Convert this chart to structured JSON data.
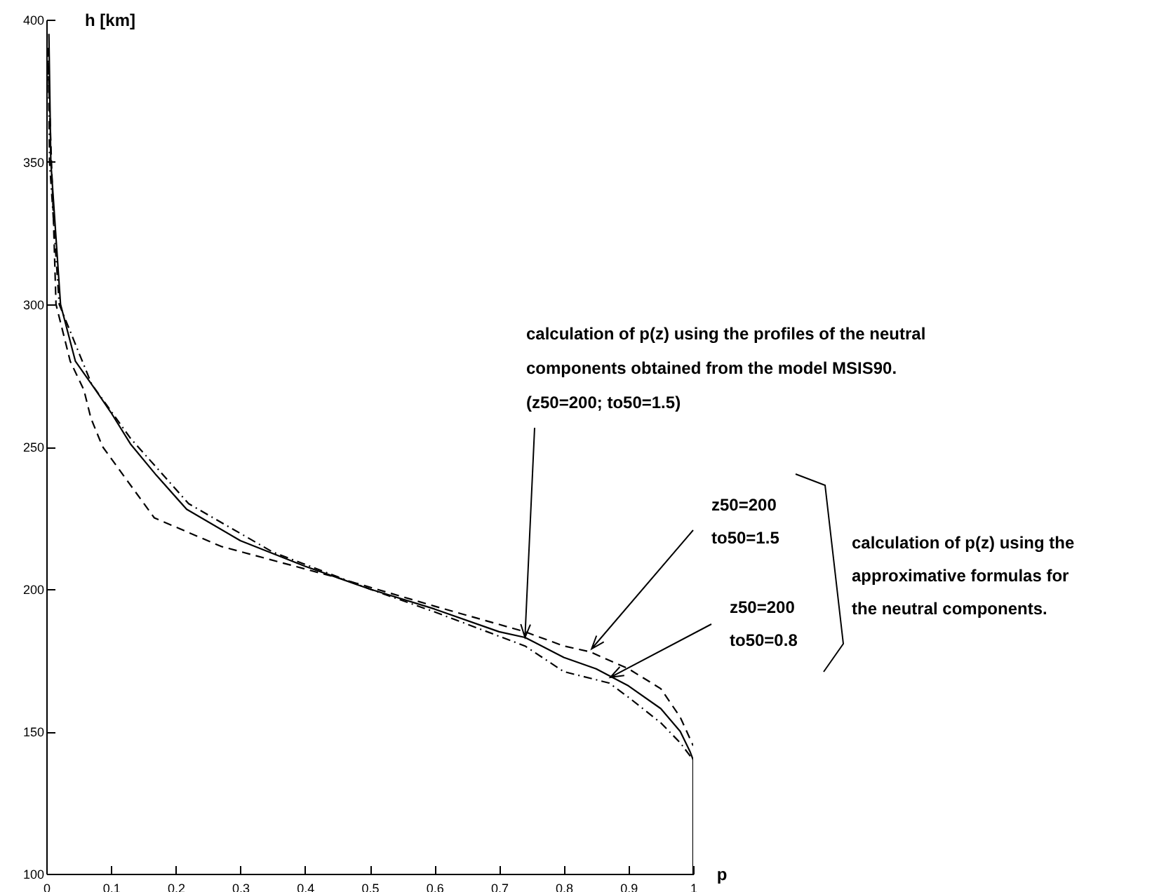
{
  "chart_data": {
    "type": "line",
    "xlabel": "p",
    "ylabel": "h [km]",
    "xlim": [
      0,
      1
    ],
    "ylim": [
      100,
      400
    ],
    "xticks": [
      0,
      0.1,
      0.2,
      0.3,
      0.4,
      0.5,
      0.6,
      0.7,
      0.8,
      0.9,
      1
    ],
    "yticks": [
      100,
      150,
      200,
      250,
      300,
      350,
      400
    ],
    "grid": false,
    "series": [
      {
        "color": "#000000",
        "line_style": "solid",
        "x": [
          0.004,
          0.007,
          0.022,
          0.045,
          0.076,
          0.1,
          0.13,
          0.17,
          0.217,
          0.3,
          0.4,
          0.5,
          0.6,
          0.7,
          0.74,
          0.8,
          0.85,
          0.9,
          0.95,
          0.98,
          0.995,
          1,
          1
        ],
        "values": [
          395,
          350,
          300,
          280,
          270,
          262,
          251,
          240,
          228,
          217,
          208,
          200,
          193,
          185,
          183,
          176,
          172,
          166,
          158,
          150,
          143,
          140,
          100
        ]
      },
      {
        "color": "#000000",
        "line_style": "dashed",
        "x": [
          0.002,
          0.008,
          0.011,
          0.015,
          0.037,
          0.058,
          0.069,
          0.087,
          0.167,
          0.27,
          0.45,
          0.6,
          0.74,
          0.8,
          0.84,
          0.9,
          0.95,
          0.98,
          1
        ],
        "values": [
          390,
          350,
          330,
          300,
          280,
          270,
          260,
          250,
          225,
          215,
          204,
          194,
          185,
          180,
          178,
          172,
          165,
          155,
          145
        ]
      },
      {
        "color": "#000000",
        "line_style": "dashdot",
        "x": [
          0.003,
          0.005,
          0.02,
          0.07,
          0.13,
          0.22,
          0.35,
          0.5,
          0.6,
          0.74,
          0.8,
          0.87,
          0.9,
          0.95,
          0.98,
          1
        ],
        "values": [
          390,
          350,
          300,
          272,
          253,
          230,
          213,
          200,
          192,
          180,
          171,
          167,
          162,
          153,
          146,
          140
        ]
      }
    ],
    "annotations": [
      {
        "text": "calculation of p(z) using the profiles of the neutral\ncomponents obtained from the model MSIS90.\n(z50=200; to50=1.5)",
        "x": 0.74,
        "y": 183
      },
      {
        "text": "z50=200\nto50=1.5",
        "x": 0.843,
        "y": 179
      },
      {
        "text": "z50=200\nto50=0.8",
        "x": 0.872,
        "y": 169
      },
      "calculation of p(z) using the\napproximative formulas for\nthe neutral components."
    ]
  }
}
